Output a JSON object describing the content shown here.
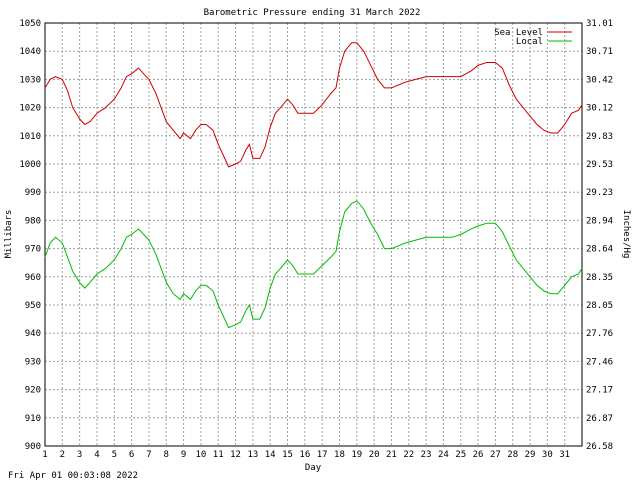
{
  "chart_data": {
    "type": "line",
    "title": "Barometric Pressure ending 31 March 2022",
    "xlabel": "Day",
    "ylabel_left": "Millibars",
    "ylabel_right": "Inches/Hg",
    "footer": "Fri Apr 01 00:03:08 2022",
    "xlim": [
      1,
      32
    ],
    "ylim": [
      900,
      1050
    ],
    "y_ticks": [
      1050,
      1040,
      1030,
      1020,
      1010,
      1000,
      990,
      980,
      970,
      960,
      950,
      940,
      930,
      920,
      910,
      900
    ],
    "right_ticks": [
      "31.01",
      "30.71",
      "30.42",
      "30.12",
      "29.83",
      "29.53",
      "29.23",
      "28.94",
      "28.64",
      "28.35",
      "28.05",
      "27.76",
      "27.46",
      "27.17",
      "26.87",
      "26.58"
    ],
    "x_ticks": [
      "1",
      "2",
      "3",
      "4",
      "5",
      "6",
      "7",
      "8",
      "9",
      "10",
      "11",
      "12",
      "13",
      "14",
      "15",
      "16",
      "17",
      "18",
      "19",
      "20",
      "21",
      "22",
      "23",
      "24",
      "25",
      "26",
      "27",
      "28",
      "29",
      "30",
      "31"
    ],
    "grid": true,
    "legend_position": "top-right",
    "series": [
      {
        "name": "Sea Level",
        "color": "#cc0000",
        "points": [
          [
            1.0,
            1027
          ],
          [
            1.3,
            1030
          ],
          [
            1.6,
            1031
          ],
          [
            2.0,
            1030
          ],
          [
            2.3,
            1026
          ],
          [
            2.6,
            1020
          ],
          [
            3.0,
            1016
          ],
          [
            3.3,
            1014
          ],
          [
            3.6,
            1015
          ],
          [
            4.0,
            1018
          ],
          [
            4.5,
            1020
          ],
          [
            5.0,
            1023
          ],
          [
            5.4,
            1027
          ],
          [
            5.7,
            1031
          ],
          [
            6.0,
            1032
          ],
          [
            6.4,
            1034
          ],
          [
            6.7,
            1032
          ],
          [
            7.0,
            1030
          ],
          [
            7.4,
            1025
          ],
          [
            7.7,
            1020
          ],
          [
            8.0,
            1015
          ],
          [
            8.4,
            1012
          ],
          [
            8.8,
            1009
          ],
          [
            9.0,
            1011
          ],
          [
            9.4,
            1009
          ],
          [
            9.7,
            1012
          ],
          [
            10.0,
            1014
          ],
          [
            10.3,
            1014
          ],
          [
            10.7,
            1012
          ],
          [
            11.0,
            1007
          ],
          [
            11.3,
            1003
          ],
          [
            11.6,
            999
          ],
          [
            12.0,
            1000
          ],
          [
            12.3,
            1001
          ],
          [
            12.6,
            1005
          ],
          [
            12.8,
            1007
          ],
          [
            13.0,
            1002
          ],
          [
            13.4,
            1002
          ],
          [
            13.7,
            1006
          ],
          [
            14.0,
            1013
          ],
          [
            14.3,
            1018
          ],
          [
            14.6,
            1020
          ],
          [
            15.0,
            1023
          ],
          [
            15.3,
            1021
          ],
          [
            15.6,
            1018
          ],
          [
            16.0,
            1018
          ],
          [
            16.5,
            1018
          ],
          [
            17.0,
            1021
          ],
          [
            17.5,
            1025
          ],
          [
            17.8,
            1027
          ],
          [
            18.0,
            1034
          ],
          [
            18.3,
            1040
          ],
          [
            18.7,
            1043
          ],
          [
            19.0,
            1043
          ],
          [
            19.4,
            1040
          ],
          [
            19.8,
            1035
          ],
          [
            20.2,
            1030
          ],
          [
            20.6,
            1027
          ],
          [
            21.0,
            1027
          ],
          [
            21.4,
            1028
          ],
          [
            21.8,
            1029
          ],
          [
            22.4,
            1030
          ],
          [
            23.0,
            1031
          ],
          [
            23.5,
            1031
          ],
          [
            24.0,
            1031
          ],
          [
            24.5,
            1031
          ],
          [
            25.0,
            1031
          ],
          [
            25.6,
            1033
          ],
          [
            26.0,
            1035
          ],
          [
            26.5,
            1036
          ],
          [
            27.0,
            1036
          ],
          [
            27.4,
            1034
          ],
          [
            27.8,
            1028
          ],
          [
            28.2,
            1023
          ],
          [
            28.6,
            1020
          ],
          [
            29.0,
            1017
          ],
          [
            29.4,
            1014
          ],
          [
            29.8,
            1012
          ],
          [
            30.2,
            1011
          ],
          [
            30.6,
            1011
          ],
          [
            31.0,
            1014
          ],
          [
            31.4,
            1018
          ],
          [
            31.8,
            1019
          ],
          [
            32.0,
            1021
          ]
        ]
      },
      {
        "name": "Local",
        "color": "#00bb00",
        "points": [
          [
            1.0,
            967
          ],
          [
            1.3,
            972
          ],
          [
            1.6,
            974
          ],
          [
            2.0,
            972
          ],
          [
            2.3,
            967
          ],
          [
            2.6,
            962
          ],
          [
            3.0,
            958
          ],
          [
            3.3,
            956
          ],
          [
            3.6,
            958
          ],
          [
            4.0,
            961
          ],
          [
            4.5,
            963
          ],
          [
            5.0,
            966
          ],
          [
            5.4,
            970
          ],
          [
            5.7,
            974
          ],
          [
            6.0,
            975
          ],
          [
            6.4,
            977
          ],
          [
            6.7,
            975
          ],
          [
            7.0,
            973
          ],
          [
            7.4,
            968
          ],
          [
            7.7,
            963
          ],
          [
            8.0,
            958
          ],
          [
            8.4,
            954
          ],
          [
            8.8,
            952
          ],
          [
            9.0,
            954
          ],
          [
            9.4,
            952
          ],
          [
            9.7,
            955
          ],
          [
            10.0,
            957
          ],
          [
            10.3,
            957
          ],
          [
            10.7,
            955
          ],
          [
            11.0,
            950
          ],
          [
            11.3,
            946
          ],
          [
            11.6,
            942
          ],
          [
            12.0,
            943
          ],
          [
            12.3,
            944
          ],
          [
            12.6,
            948
          ],
          [
            12.8,
            950
          ],
          [
            13.0,
            945
          ],
          [
            13.4,
            945
          ],
          [
            13.7,
            949
          ],
          [
            14.0,
            956
          ],
          [
            14.3,
            961
          ],
          [
            14.6,
            963
          ],
          [
            15.0,
            966
          ],
          [
            15.3,
            964
          ],
          [
            15.6,
            961
          ],
          [
            16.0,
            961
          ],
          [
            16.5,
            961
          ],
          [
            17.0,
            964
          ],
          [
            17.5,
            967
          ],
          [
            17.8,
            969
          ],
          [
            18.0,
            976
          ],
          [
            18.3,
            983
          ],
          [
            18.7,
            986
          ],
          [
            19.0,
            987
          ],
          [
            19.4,
            984
          ],
          [
            19.8,
            979
          ],
          [
            20.2,
            975
          ],
          [
            20.6,
            970
          ],
          [
            21.0,
            970
          ],
          [
            21.4,
            971
          ],
          [
            21.8,
            972
          ],
          [
            22.4,
            973
          ],
          [
            23.0,
            974
          ],
          [
            23.5,
            974
          ],
          [
            24.0,
            974
          ],
          [
            24.5,
            974
          ],
          [
            25.0,
            975
          ],
          [
            25.6,
            977
          ],
          [
            26.0,
            978
          ],
          [
            26.5,
            979
          ],
          [
            27.0,
            979
          ],
          [
            27.4,
            976
          ],
          [
            27.8,
            971
          ],
          [
            28.2,
            966
          ],
          [
            28.6,
            963
          ],
          [
            29.0,
            960
          ],
          [
            29.4,
            957
          ],
          [
            29.8,
            955
          ],
          [
            30.2,
            954
          ],
          [
            30.6,
            954
          ],
          [
            31.0,
            957
          ],
          [
            31.4,
            960
          ],
          [
            31.8,
            961
          ],
          [
            32.0,
            963
          ]
        ]
      }
    ]
  }
}
